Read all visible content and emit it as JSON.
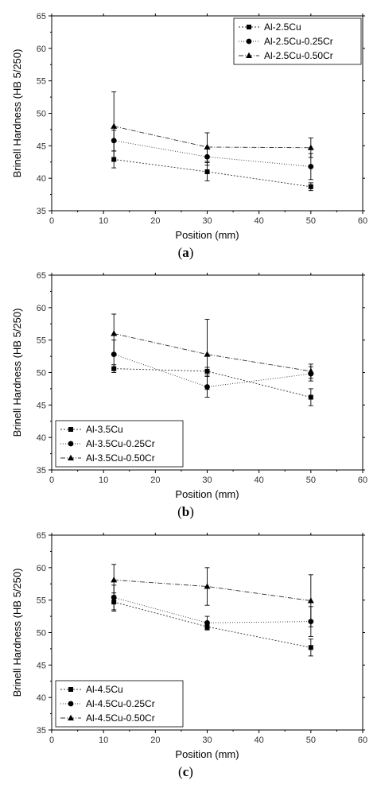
{
  "chart_data": [
    {
      "type": "line",
      "caption": "a",
      "xlabel": "Position (mm)",
      "ylabel": "Brinell Hardness (HB 5/250)",
      "xlim": [
        0,
        60
      ],
      "ylim": [
        35,
        65
      ],
      "xticks": [
        0,
        10,
        20,
        30,
        40,
        50,
        60
      ],
      "yticks": [
        35,
        40,
        45,
        50,
        55,
        60,
        65
      ],
      "legend_position": "top-right",
      "grid": false,
      "x": [
        12,
        30,
        50
      ],
      "series": [
        {
          "name": "Al-2.5Cu",
          "marker": "square",
          "dash": "dotted",
          "values": [
            42.9,
            41.0,
            38.7
          ],
          "errors": [
            1.3,
            1.4,
            0.6
          ]
        },
        {
          "name": "Al-2.5Cu-0.25Cr",
          "marker": "circle",
          "dash": "dotted-fine",
          "values": [
            45.8,
            43.3,
            41.8
          ],
          "errors": [
            1.6,
            1.3,
            2.0
          ]
        },
        {
          "name": "Al-2.5Cu-0.50Cr",
          "marker": "triangle",
          "dash": "dash-dot",
          "values": [
            48.0,
            44.8,
            44.7
          ],
          "errors": [
            5.3,
            2.2,
            1.5
          ]
        }
      ]
    },
    {
      "type": "line",
      "caption": "b",
      "xlabel": "Position (mm)",
      "ylabel": "Brinell Hardness (HB 5/250)",
      "xlim": [
        0,
        60
      ],
      "ylim": [
        35,
        65
      ],
      "xticks": [
        0,
        10,
        20,
        30,
        40,
        50,
        60
      ],
      "yticks": [
        35,
        40,
        45,
        50,
        55,
        60,
        65
      ],
      "legend_position": "bottom-left",
      "grid": false,
      "x": [
        12,
        30,
        50
      ],
      "series": [
        {
          "name": "Al-3.5Cu",
          "marker": "square",
          "dash": "dotted",
          "values": [
            50.6,
            50.2,
            46.2
          ],
          "errors": [
            0.6,
            0.6,
            1.3
          ]
        },
        {
          "name": "Al-3.5Cu-0.25Cr",
          "marker": "circle",
          "dash": "dotted-fine",
          "values": [
            52.8,
            47.8,
            49.8
          ],
          "errors": [
            2.2,
            1.6,
            1.1
          ]
        },
        {
          "name": "Al-3.5Cu-0.50Cr",
          "marker": "triangle",
          "dash": "dash-dot",
          "values": [
            56.0,
            52.8,
            50.2
          ],
          "errors": [
            3.0,
            5.4,
            1.1
          ]
        }
      ]
    },
    {
      "type": "line",
      "caption": "c",
      "xlabel": "Position (mm)",
      "ylabel": "Brinell Hardness (HB 5/250)",
      "xlim": [
        0,
        60
      ],
      "ylim": [
        35,
        65
      ],
      "xticks": [
        0,
        10,
        20,
        30,
        40,
        50,
        60
      ],
      "yticks": [
        35,
        40,
        45,
        50,
        55,
        60,
        65
      ],
      "legend_position": "bottom-left",
      "grid": false,
      "x": [
        12,
        30,
        50
      ],
      "series": [
        {
          "name": "Al-4.5Cu",
          "marker": "square",
          "dash": "dotted",
          "values": [
            54.7,
            50.9,
            47.7
          ],
          "errors": [
            1.4,
            0.5,
            1.3
          ]
        },
        {
          "name": "Al-4.5Cu-0.25Cr",
          "marker": "circle",
          "dash": "dotted-fine",
          "values": [
            55.4,
            51.5,
            51.7
          ],
          "errors": [
            1.9,
            1.0,
            2.3
          ]
        },
        {
          "name": "Al-4.5Cu-0.50Cr",
          "marker": "triangle",
          "dash": "dash-dot",
          "values": [
            58.1,
            57.1,
            54.9
          ],
          "errors": [
            2.4,
            2.9,
            4.0
          ]
        }
      ]
    }
  ]
}
